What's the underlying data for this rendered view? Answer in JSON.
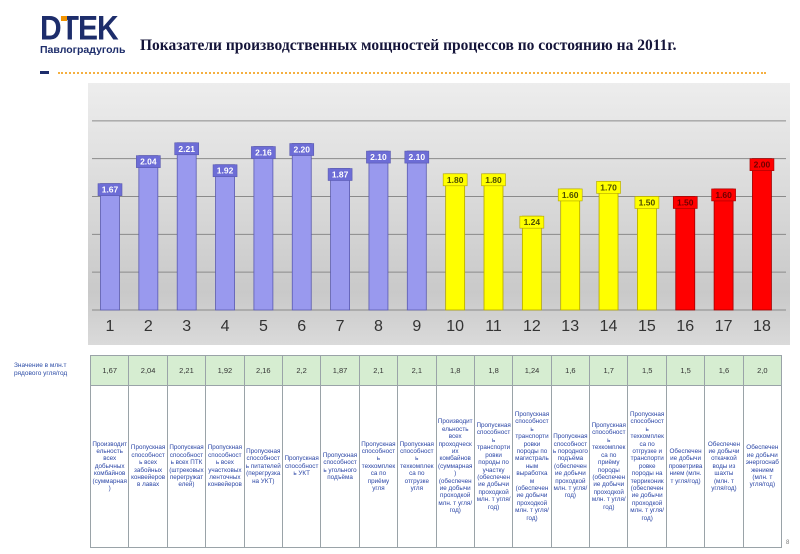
{
  "slide": {
    "logo_text": "DTEK",
    "logo_subtitle": "Павлоградуголь",
    "title": "Показатели производственных мощностей процессов по состоянию на 2011г.",
    "page_number": "8",
    "colors": {
      "brand_navy": "#1d2d6b",
      "brand_orange": "#f29400"
    }
  },
  "chart_data": {
    "type": "bar",
    "categories": [
      "1",
      "2",
      "3",
      "4",
      "5",
      "6",
      "7",
      "8",
      "9",
      "10",
      "11",
      "12",
      "13",
      "14",
      "15",
      "16",
      "17",
      "18"
    ],
    "values": [
      1.67,
      2.04,
      2.21,
      1.92,
      2.16,
      2.2,
      1.87,
      2.1,
      2.1,
      1.8,
      1.8,
      1.24,
      1.6,
      1.7,
      1.5,
      1.5,
      1.6,
      2.0
    ],
    "data_labels": [
      "1.67",
      "2.04",
      "2.21",
      "1.92",
      "2.16",
      "2.20",
      "1.87",
      "2.10",
      "2.10",
      "1.80",
      "1.80",
      "1.24",
      "1.60",
      "1.70",
      "1.50",
      "1.50",
      "1.60",
      "2.00"
    ],
    "bar_colors": [
      "#9999ee",
      "#9999ee",
      "#9999ee",
      "#9999ee",
      "#9999ee",
      "#9999ee",
      "#9999ee",
      "#9999ee",
      "#9999ee",
      "#ffff00",
      "#ffff00",
      "#ffff00",
      "#ffff00",
      "#ffff00",
      "#ffff00",
      "#ff0000",
      "#ff0000",
      "#ff0000"
    ],
    "ylim": [
      0,
      3
    ],
    "gridline_step": 0.5,
    "grid": true
  },
  "table": {
    "row_label": "Значение в млн.т рядового угля/год",
    "values": [
      "1,67",
      "2,04",
      "2,21",
      "1,92",
      "2,16",
      "2,2",
      "1,87",
      "2,1",
      "2,1",
      "1,8",
      "1,8",
      "1,24",
      "1,6",
      "1,7",
      "1,5",
      "1,5",
      "1,6",
      "2,0"
    ],
    "descriptions": [
      "Производительность всех добычных комбайнов (суммарная)",
      "Пропускная способность всех забойных конвейеров в лавах",
      "Пропускная способность всех ПТК (штрековых перегружателей)",
      "Пропускная способность всех участковых ленточных конвейеров",
      "Пропускная способность питателей (перегрузка на УКТ)",
      "Пропускная способность УКТ",
      "Пропускная способность угольного подъёма",
      "Пропускная способность техкомплекса по приёму угля",
      "Пропускная способность техкомплекса по отгрузке угля",
      "Производительность всех проходческих комбайнов (суммарная) (обеспечение добычи проходкой млн. т угля/год)",
      "Пропускная способность транспортировки породы по участку (обеспечение добычи проходкой млн. т угля/год)",
      "Пропускная способность транспортировки породы по магистральным выработкам (обеспечение добычи проходкой млн. т угля/год)",
      "Пропускная способность породного подъёма (обеспечение добычи проходкой млн. т угля/год)",
      "Пропускная способность техкомплекса по приёму породы (обеспечение добычи проходкой млн. т угля/год)",
      "Пропускная способность техкомплекса по отгрузке и транспортировке породы на терриконик (обеспечение добычи проходкой млн. т угля/год)",
      "Обеспечение добычи проветриванием (млн. т угля/год)",
      "Обеспечение добычи откачкой воды из шахты (млн. т угля/год)",
      "Обеспечение добычи энергоснабжением (млн. т угля/год)"
    ]
  }
}
